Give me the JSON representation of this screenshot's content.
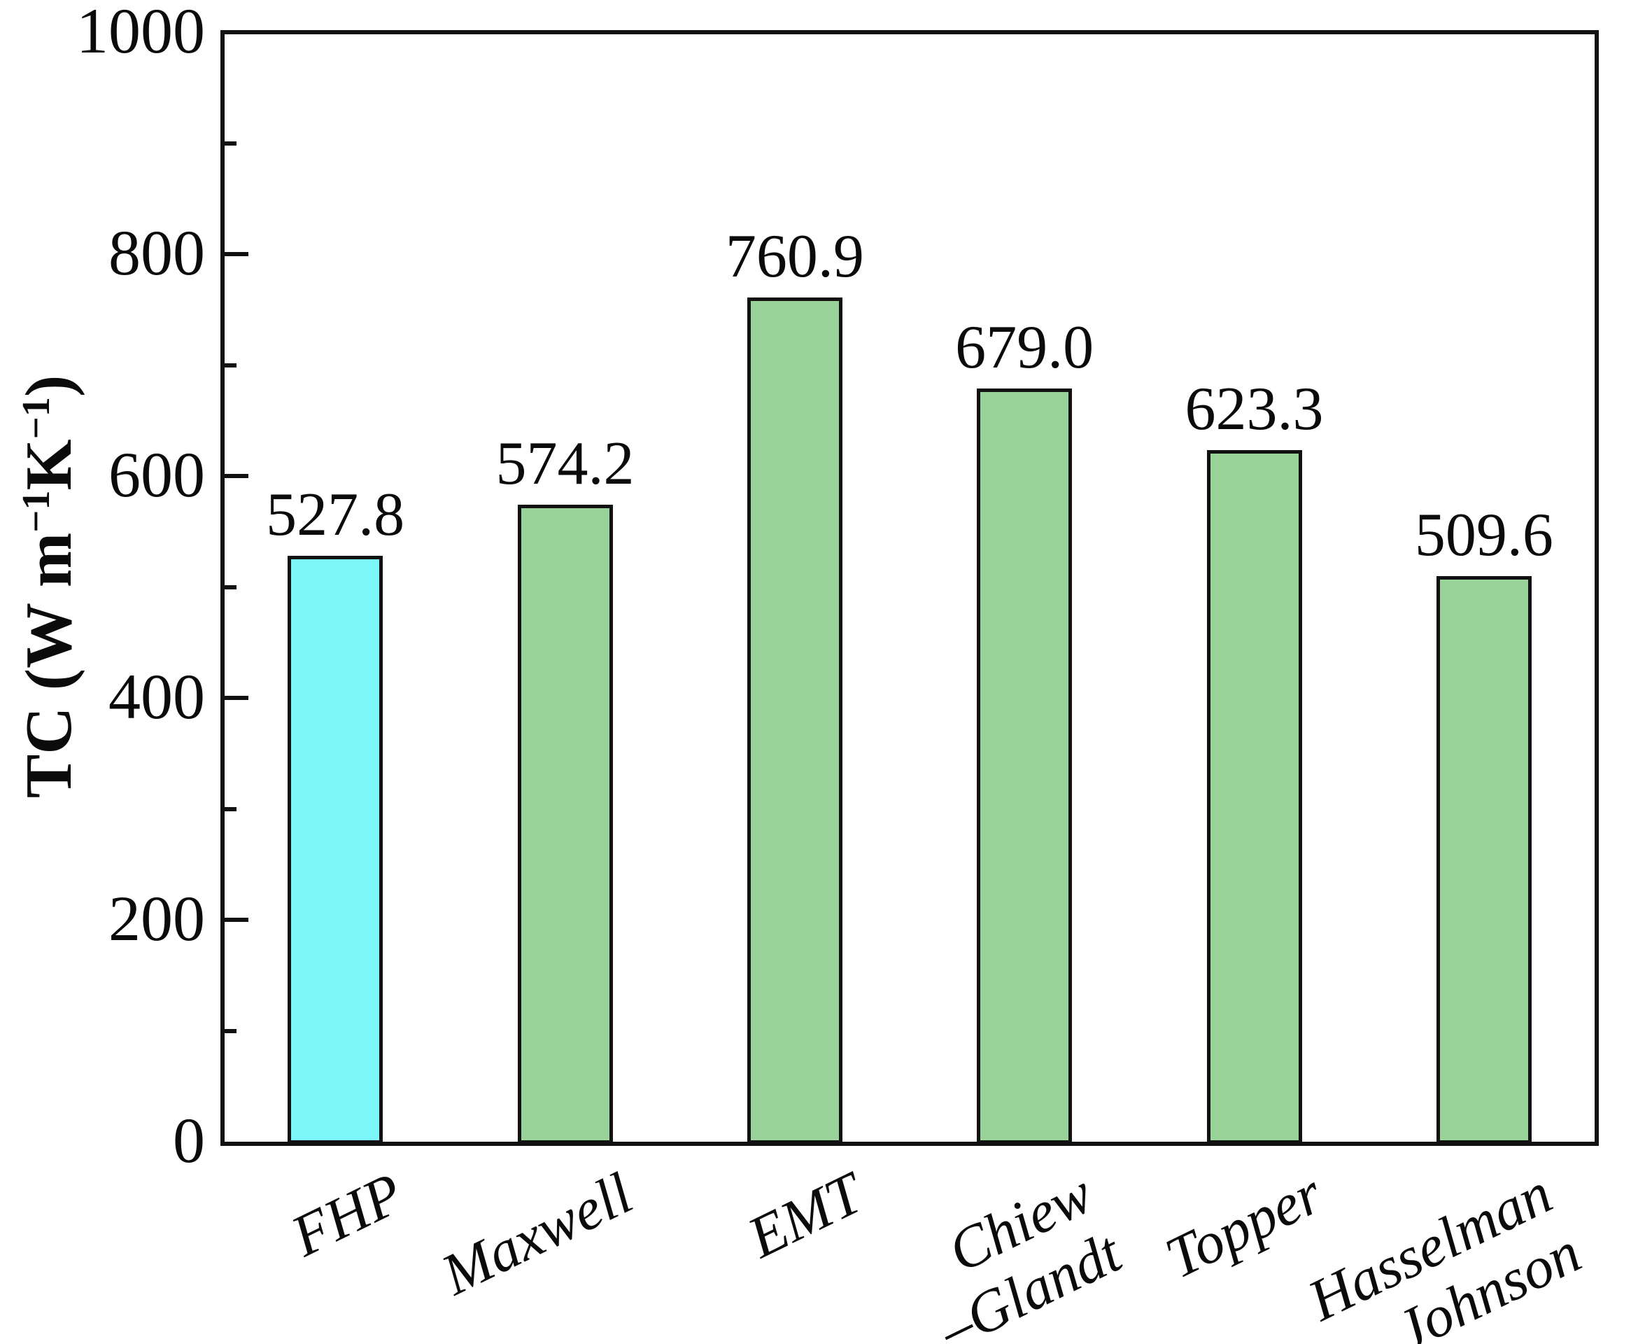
{
  "figure": {
    "background": "#ffffff"
  },
  "chart_data": {
    "type": "bar",
    "title": "",
    "categories": [
      "FHP",
      "Maxwell",
      "EMT",
      "Chiew\n–Glandt",
      "Topper",
      "Hasselman\n– Johnson"
    ],
    "values": [
      527.8,
      574.2,
      760.9,
      679.0,
      623.3,
      509.6
    ],
    "value_labels": [
      "527.8",
      "574.2",
      "760.9",
      "679.0",
      "623.3",
      "509.6"
    ],
    "xlabel": "",
    "ylabel": "TC (W m⁻¹K⁻¹)",
    "ylabel_segments": [
      {
        "text": "TC (W m"
      },
      {
        "text": "−1",
        "sup": true
      },
      {
        "text": "K"
      },
      {
        "text": "−1",
        "sup": true
      },
      {
        "text": ")"
      }
    ],
    "ylim": [
      0,
      1000
    ],
    "yticks_major": [
      0,
      200,
      400,
      600,
      800,
      1000
    ],
    "yticks_minor": [
      100,
      300,
      500,
      700,
      900
    ],
    "grid": false,
    "legend": null,
    "x_label_rotation_deg": -26,
    "bar_colors": [
      "#7df7f7",
      "#9ad39a",
      "#9ad39a",
      "#9ad39a",
      "#9ad39a",
      "#9ad39a"
    ],
    "bar_edge_color": "#111111",
    "axis_color": "#111111",
    "text_color": "#0b0b0b"
  }
}
